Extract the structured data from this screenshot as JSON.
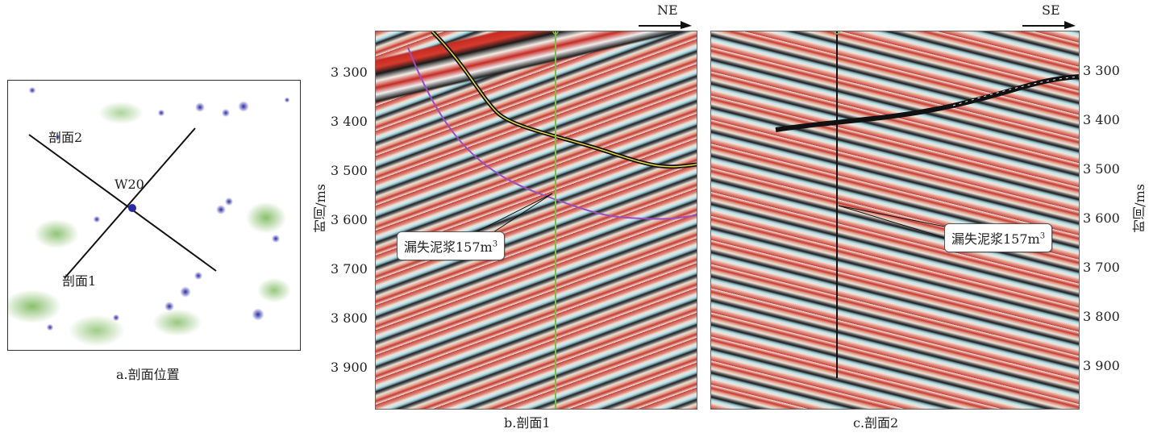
{
  "panel_a": {
    "caption": "a.剖面位置",
    "section2_label": "剖面2",
    "section1_label": "剖面1",
    "well_label": "W20"
  },
  "panel_b": {
    "caption": "b.剖面1",
    "direction": "NE",
    "axis_label": "时间/ms",
    "ticks": [
      "3 300",
      "3 400",
      "3 500",
      "3 600",
      "3 700",
      "3 800",
      "3 900"
    ],
    "callout_text": "漏失泥浆157m",
    "callout_sup": "3"
  },
  "panel_c": {
    "caption": "c.剖面2",
    "direction": "SE",
    "axis_label": "时间/ms",
    "ticks": [
      "3 300",
      "3 400",
      "3 500",
      "3 600",
      "3 700",
      "3 800",
      "3 900"
    ],
    "callout_text": "漏失泥浆157m",
    "callout_sup": "3"
  },
  "colors": {
    "seismic_red": "#c62b23",
    "seismic_black": "#1a1a1a",
    "seismic_blue": "#bde6ec",
    "map_green": "#6cb048",
    "map_blue": "#2a2aa6",
    "horizon_purple": "#9a4fc0",
    "horizon_yellow": "#e8d84a"
  }
}
